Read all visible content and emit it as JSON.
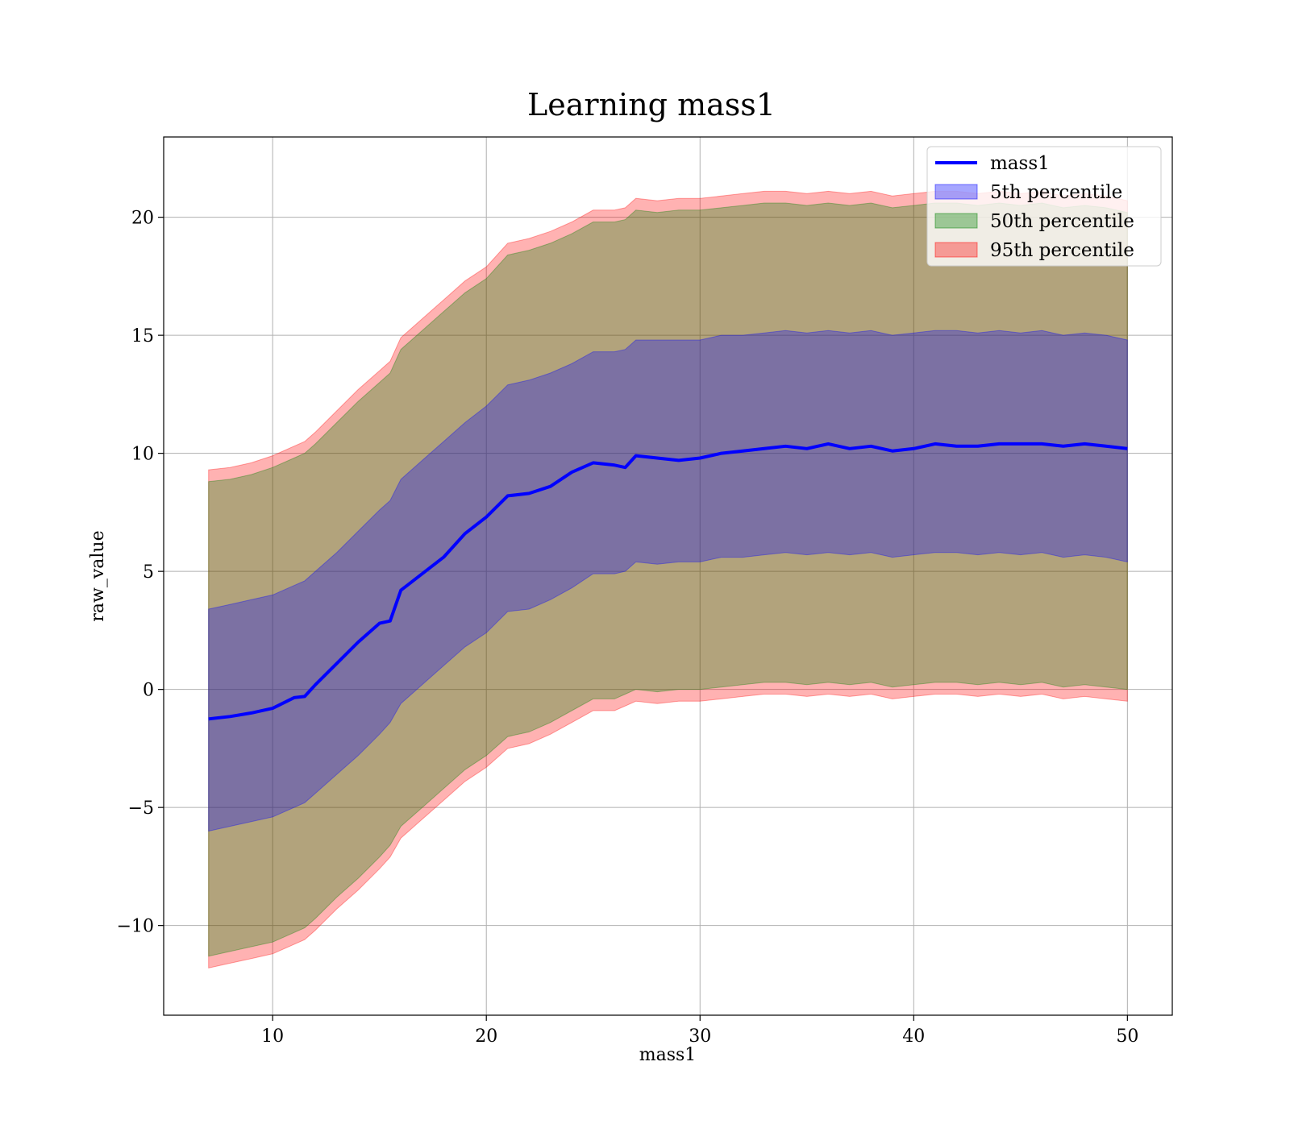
{
  "chart_data": {
    "type": "area",
    "title": "Learning mass1",
    "xlabel": "mass1",
    "ylabel": "raw_value",
    "xlim": [
      4.9,
      52.1
    ],
    "ylim": [
      -13.8,
      23.4
    ],
    "xticks": [
      10,
      20,
      30,
      40,
      50
    ],
    "yticks": [
      -10,
      -5,
      0,
      5,
      10,
      15,
      20
    ],
    "ytick_labels": [
      "−10",
      "−5",
      "0",
      "5",
      "10",
      15,
      "20"
    ],
    "grid": true,
    "legend_position": "top-right",
    "colors": {
      "line": "#0000ff",
      "band_5th": "#0000ff",
      "band_50th": "#008000",
      "band_95th": "#ff0000",
      "grid": "#b0b0b0"
    },
    "x": [
      7,
      8,
      9,
      10,
      11,
      11.5,
      12,
      13,
      14,
      15,
      15.5,
      16,
      17,
      18,
      19,
      20,
      21,
      22,
      23,
      24,
      25,
      26,
      26.5,
      27,
      28,
      29,
      30,
      31,
      32,
      33,
      34,
      35,
      36,
      37,
      38,
      39,
      40,
      41,
      42,
      43,
      44,
      45,
      46,
      47,
      48,
      49,
      50
    ],
    "series": [
      {
        "name": "mass1",
        "kind": "line",
        "values": [
          -1.25,
          -1.15,
          -1.0,
          -0.8,
          -0.35,
          -0.3,
          0.2,
          1.1,
          2.0,
          2.8,
          2.9,
          4.2,
          4.9,
          5.6,
          6.6,
          7.3,
          8.2,
          8.3,
          8.6,
          9.2,
          9.6,
          9.5,
          9.4,
          9.9,
          9.8,
          9.7,
          9.8,
          10.0,
          10.1,
          10.2,
          10.3,
          10.2,
          10.4,
          10.2,
          10.3,
          10.1,
          10.2,
          10.4,
          10.3,
          10.3,
          10.4,
          10.4,
          10.4,
          10.3,
          10.4,
          10.3,
          10.2
        ]
      },
      {
        "name": "5th percentile",
        "kind": "band",
        "lower": [
          -6.0,
          -5.8,
          -5.6,
          -5.4,
          -5.0,
          -4.8,
          -4.4,
          -3.6,
          -2.8,
          -1.9,
          -1.4,
          -0.6,
          0.2,
          1.0,
          1.8,
          2.4,
          3.3,
          3.4,
          3.8,
          4.3,
          4.9,
          4.9,
          5.0,
          5.4,
          5.3,
          5.4,
          5.4,
          5.6,
          5.6,
          5.7,
          5.8,
          5.7,
          5.8,
          5.7,
          5.8,
          5.6,
          5.7,
          5.8,
          5.8,
          5.7,
          5.8,
          5.7,
          5.8,
          5.6,
          5.7,
          5.6,
          5.4
        ],
        "upper": [
          3.4,
          3.6,
          3.8,
          4.0,
          4.4,
          4.6,
          5.0,
          5.8,
          6.7,
          7.6,
          8.0,
          8.9,
          9.7,
          10.5,
          11.3,
          12.0,
          12.9,
          13.1,
          13.4,
          13.8,
          14.3,
          14.3,
          14.4,
          14.8,
          14.8,
          14.8,
          14.8,
          15.0,
          15.0,
          15.1,
          15.2,
          15.1,
          15.2,
          15.1,
          15.2,
          15.0,
          15.1,
          15.2,
          15.2,
          15.1,
          15.2,
          15.1,
          15.2,
          15.0,
          15.1,
          15.0,
          14.8
        ]
      },
      {
        "name": "50th percentile",
        "kind": "band",
        "lower": [
          -11.3,
          -11.1,
          -10.9,
          -10.7,
          -10.3,
          -10.1,
          -9.7,
          -8.8,
          -8.0,
          -7.1,
          -6.6,
          -5.8,
          -5.0,
          -4.2,
          -3.4,
          -2.8,
          -2.0,
          -1.8,
          -1.4,
          -0.9,
          -0.4,
          -0.4,
          -0.2,
          0.0,
          -0.1,
          0.0,
          0.0,
          0.1,
          0.2,
          0.3,
          0.3,
          0.2,
          0.3,
          0.2,
          0.3,
          0.1,
          0.2,
          0.3,
          0.3,
          0.2,
          0.3,
          0.2,
          0.3,
          0.1,
          0.2,
          0.1,
          0.0
        ],
        "upper": [
          8.8,
          8.9,
          9.1,
          9.4,
          9.8,
          10.0,
          10.4,
          11.3,
          12.2,
          13.0,
          13.4,
          14.4,
          15.2,
          16.0,
          16.8,
          17.4,
          18.4,
          18.6,
          18.9,
          19.3,
          19.8,
          19.8,
          19.9,
          20.3,
          20.2,
          20.3,
          20.3,
          20.4,
          20.5,
          20.6,
          20.6,
          20.5,
          20.6,
          20.5,
          20.6,
          20.4,
          20.5,
          20.6,
          20.6,
          20.5,
          20.6,
          20.5,
          20.6,
          20.4,
          20.5,
          20.4,
          20.2
        ]
      },
      {
        "name": "95th percentile",
        "kind": "band",
        "lower": [
          -11.8,
          -11.6,
          -11.4,
          -11.2,
          -10.8,
          -10.6,
          -10.2,
          -9.3,
          -8.5,
          -7.6,
          -7.1,
          -6.3,
          -5.5,
          -4.7,
          -3.9,
          -3.3,
          -2.5,
          -2.3,
          -1.9,
          -1.4,
          -0.9,
          -0.9,
          -0.7,
          -0.5,
          -0.6,
          -0.5,
          -0.5,
          -0.4,
          -0.3,
          -0.2,
          -0.2,
          -0.3,
          -0.2,
          -0.3,
          -0.2,
          -0.4,
          -0.3,
          -0.2,
          -0.2,
          -0.3,
          -0.2,
          -0.3,
          -0.2,
          -0.4,
          -0.3,
          -0.4,
          -0.5
        ],
        "upper": [
          9.3,
          9.4,
          9.6,
          9.9,
          10.3,
          10.5,
          10.9,
          11.8,
          12.7,
          13.5,
          13.9,
          14.9,
          15.7,
          16.5,
          17.3,
          17.9,
          18.9,
          19.1,
          19.4,
          19.8,
          20.3,
          20.3,
          20.4,
          20.8,
          20.7,
          20.8,
          20.8,
          20.9,
          21.0,
          21.1,
          21.1,
          21.0,
          21.1,
          21.0,
          21.1,
          20.9,
          21.0,
          21.1,
          21.1,
          21.0,
          21.1,
          21.0,
          21.1,
          20.9,
          21.0,
          20.9,
          20.7
        ]
      }
    ]
  }
}
